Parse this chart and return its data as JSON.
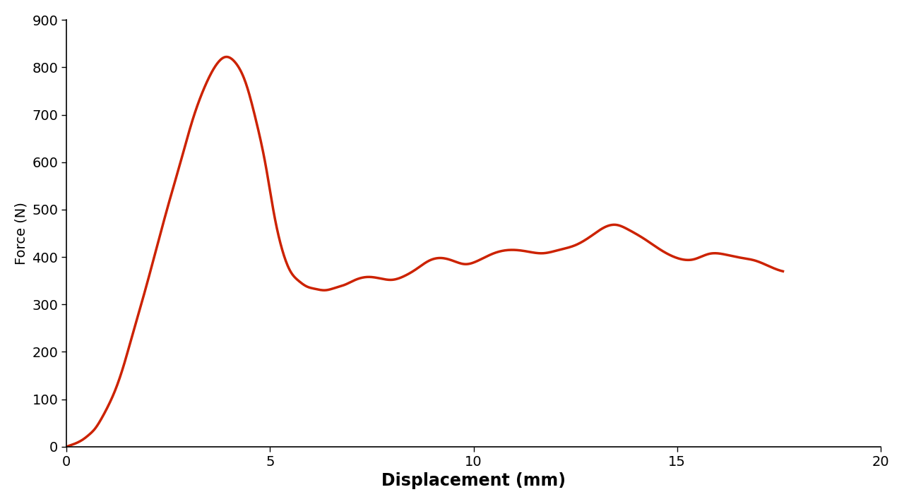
{
  "title": "",
  "xlabel": "Displacement (mm)",
  "ylabel": "Force (N)",
  "line_color": "#CC2200",
  "line_width": 2.5,
  "xlim": [
    0,
    20
  ],
  "ylim": [
    0,
    900
  ],
  "xticks": [
    0,
    5,
    10,
    15,
    20
  ],
  "yticks": [
    0,
    100,
    200,
    300,
    400,
    500,
    600,
    700,
    800,
    900
  ],
  "xlabel_fontsize": 17,
  "ylabel_fontsize": 14,
  "tick_fontsize": 14,
  "background_color": "#ffffff",
  "x": [
    0.0,
    0.1,
    0.25,
    0.4,
    0.55,
    0.7,
    0.85,
    1.0,
    1.2,
    1.4,
    1.6,
    1.9,
    2.2,
    2.5,
    2.8,
    3.1,
    3.4,
    3.7,
    3.9,
    4.15,
    4.4,
    4.65,
    4.9,
    5.1,
    5.3,
    5.5,
    5.7,
    5.9,
    6.1,
    6.35,
    6.6,
    6.85,
    7.1,
    7.4,
    7.7,
    8.0,
    8.3,
    8.6,
    8.9,
    9.2,
    9.5,
    9.8,
    10.1,
    10.5,
    10.9,
    11.3,
    11.7,
    12.1,
    12.5,
    12.9,
    13.2,
    13.5,
    13.8,
    14.2,
    14.6,
    15.0,
    15.4,
    15.8,
    16.2,
    16.6,
    16.9,
    17.2,
    17.6
  ],
  "y": [
    0,
    3,
    8,
    15,
    25,
    38,
    58,
    82,
    120,
    170,
    230,
    320,
    415,
    510,
    600,
    690,
    760,
    808,
    822,
    810,
    768,
    690,
    590,
    490,
    415,
    370,
    350,
    338,
    333,
    330,
    335,
    342,
    352,
    358,
    355,
    352,
    360,
    375,
    392,
    398,
    392,
    385,
    392,
    408,
    415,
    412,
    408,
    415,
    425,
    445,
    462,
    468,
    458,
    438,
    415,
    398,
    395,
    407,
    405,
    398,
    393,
    383,
    370
  ]
}
